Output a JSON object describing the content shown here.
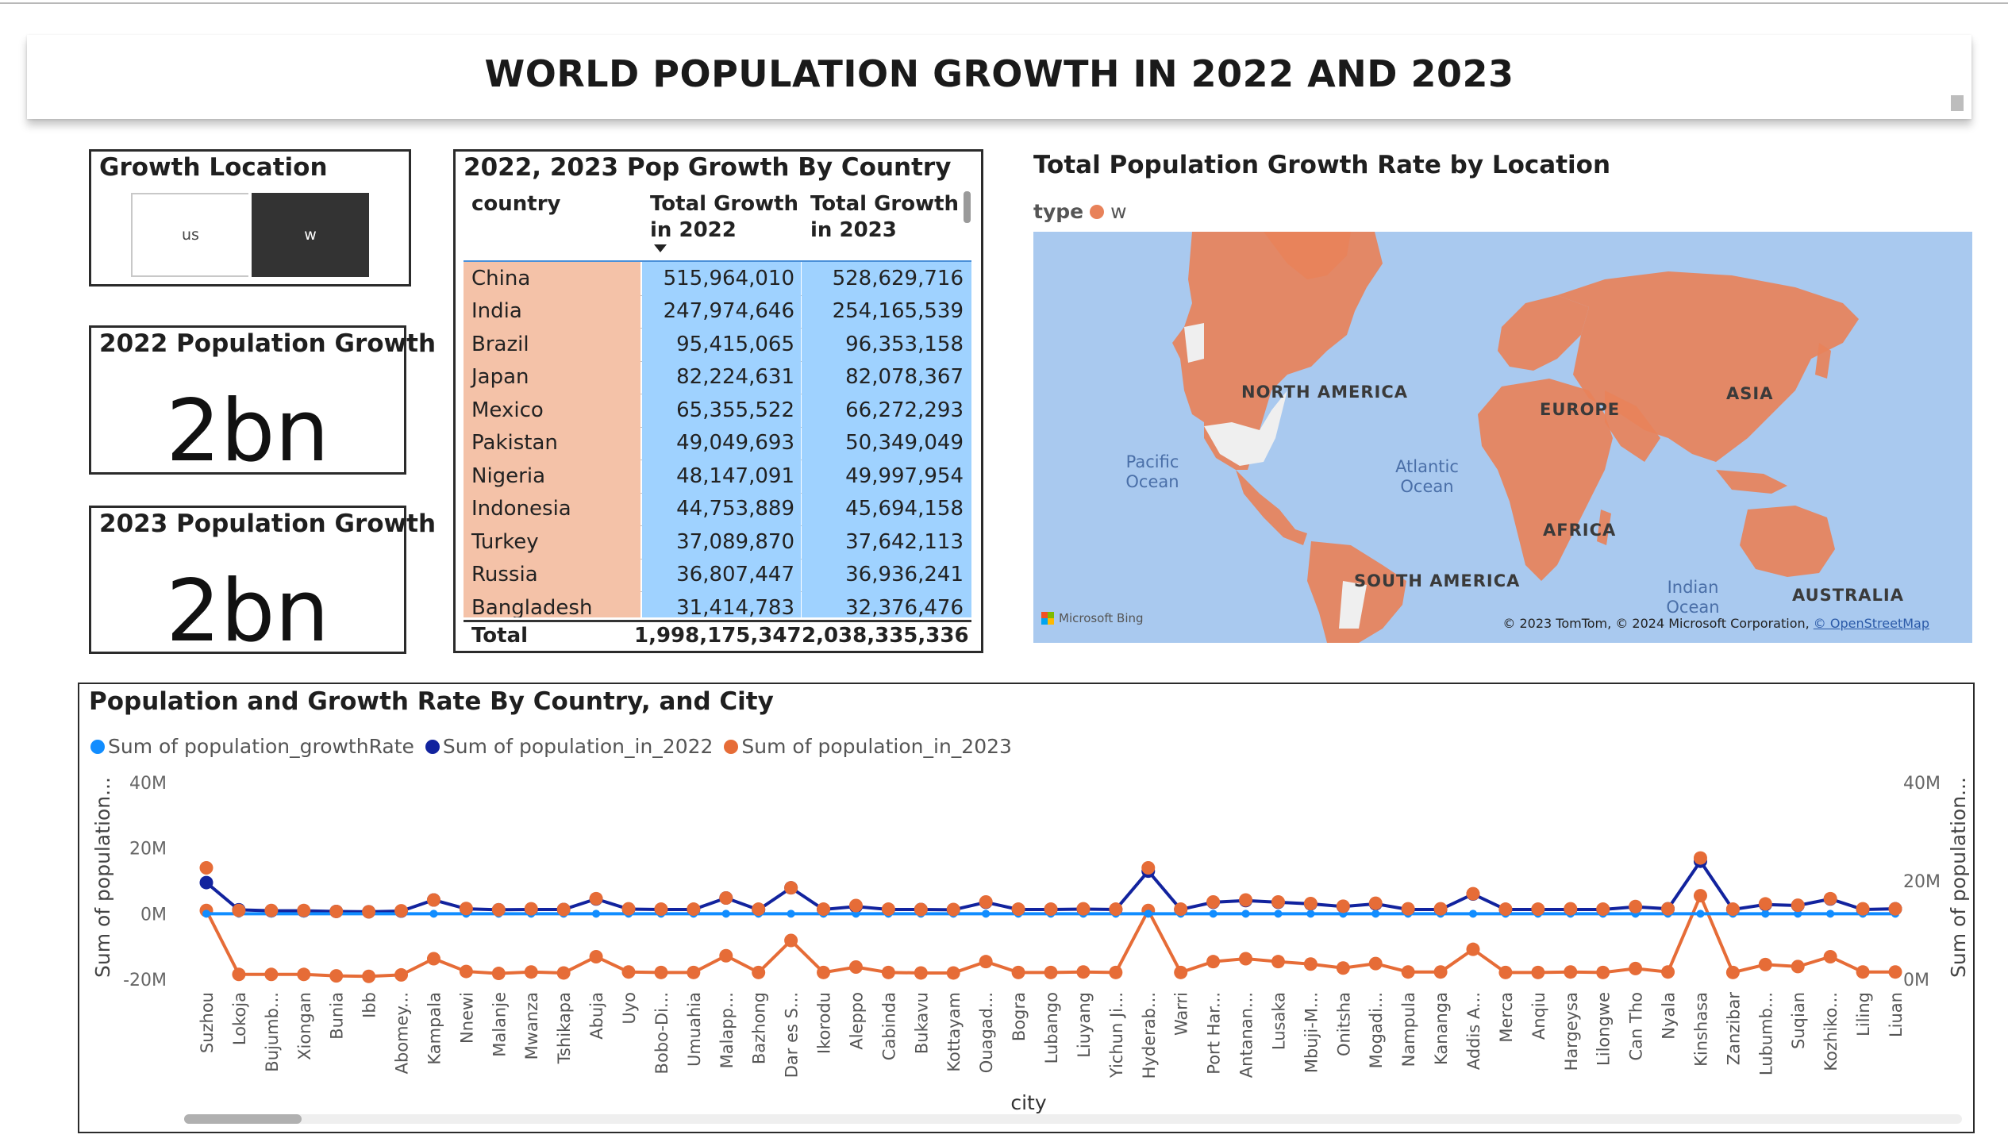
{
  "title": "WORLD POPULATION GROWTH IN 2022 AND 2023",
  "slicer": {
    "title": "Growth Location",
    "options": [
      {
        "label": "us",
        "selected": false
      },
      {
        "label": "w",
        "selected": true
      }
    ]
  },
  "kpi_2022": {
    "title": "2022 Population Growth",
    "value": "2bn"
  },
  "kpi_2023": {
    "title": "2023 Population Growth",
    "value": "2bn"
  },
  "table": {
    "title": "2022, 2023 Pop Growth By Country",
    "columns": [
      "country",
      "Total Growth in 2022",
      "Total Growth in 2023"
    ],
    "rows": [
      [
        "China",
        "515,964,010",
        "528,629,716"
      ],
      [
        "India",
        "247,974,646",
        "254,165,539"
      ],
      [
        "Brazil",
        "95,415,065",
        "96,353,158"
      ],
      [
        "Japan",
        "82,224,631",
        "82,078,367"
      ],
      [
        "Mexico",
        "65,355,522",
        "66,272,293"
      ],
      [
        "Pakistan",
        "49,049,693",
        "50,349,049"
      ],
      [
        "Nigeria",
        "48,147,091",
        "49,997,954"
      ],
      [
        "Indonesia",
        "44,753,889",
        "45,694,158"
      ],
      [
        "Turkey",
        "37,089,870",
        "37,642,113"
      ],
      [
        "Russia",
        "36,807,447",
        "36,936,241"
      ],
      [
        "Bangladesh",
        "31,414,783",
        "32,376,476"
      ]
    ],
    "total": {
      "label": "Total",
      "v2022": "1,998,175,347",
      "v2023": "2,038,335,336"
    }
  },
  "map": {
    "title": "Total Population Growth Rate by Location",
    "legend_title": "type",
    "legend_item": "w",
    "legend_color": "#e8825a",
    "continents": [
      "NORTH AMERICA",
      "EUROPE",
      "ASIA",
      "AFRICA",
      "SOUTH AMERICA",
      "AUSTRALIA"
    ],
    "oceans": [
      "Pacific Ocean",
      "Atlantic Ocean",
      "Indian Ocean"
    ],
    "provider": "Microsoft Bing",
    "copyright_text": "© 2023 TomTom, © 2024 Microsoft Corporation, ",
    "copyright_link": "© OpenStreetMap"
  },
  "chart": {
    "title": "Population and Growth Rate By Country, and City",
    "legend": [
      {
        "name": "Sum of population_growthRate",
        "color": "#118dff"
      },
      {
        "name": "Sum of population_in_2022",
        "color": "#12239e"
      },
      {
        "name": "Sum of population_in_2023",
        "color": "#e66c37"
      }
    ],
    "y_left_title": "Sum of population...",
    "y_right_title": "Sum of population...",
    "x_title": "city",
    "y_left_ticks": [
      "40M",
      "20M",
      "0M",
      "-20M"
    ],
    "y_right_ticks": [
      "40M",
      "20M",
      "0M"
    ]
  },
  "chart_data": {
    "type": "line",
    "title": "Population and Growth Rate By Country, and City",
    "xlabel": "city",
    "ylabel": "Sum of population...",
    "ylim_left": [
      -20000000,
      40000000
    ],
    "ylim_right": [
      0,
      40000000
    ],
    "grid": false,
    "legend_position": "top-left",
    "x": [
      "Suzhou",
      "Lokoja",
      "Bujumb...",
      "Xiongan",
      "Bunia",
      "Ibb",
      "Abomey...",
      "Kampala",
      "Nnewi",
      "Malanje",
      "Mwanza",
      "Tshikapa",
      "Abuja",
      "Uyo",
      "Bobo-Di...",
      "Umuahia",
      "Malapp...",
      "Bazhong",
      "Dar es S...",
      "Ikorodu",
      "Aleppo",
      "Cabinda",
      "Bukavu",
      "Kottayam",
      "Ouagad...",
      "Bogra",
      "Lubango",
      "Liuyang",
      "Yichun Ji...",
      "Hyderab...",
      "Warri",
      "Port Har...",
      "Antanan...",
      "Lusaka",
      "Mbuji-M...",
      "Onitsha",
      "Mogadi...",
      "Nampula",
      "Kananga",
      "Addis A...",
      "Merca",
      "Anqiu",
      "Hargeysa",
      "Lilongwe",
      "Can Tho",
      "Nyala",
      "Kinshasa",
      "Zanzibar",
      "Lubumb...",
      "Suqian",
      "Kozhiko...",
      "Liling",
      "Liuan"
    ],
    "series": [
      {
        "name": "Sum of population_growthRate",
        "axis": "left",
        "values": [
          0,
          0,
          0,
          0,
          0,
          0,
          0,
          0,
          0,
          0,
          0,
          0,
          0,
          0,
          0,
          0,
          0,
          0,
          0,
          0,
          0,
          0,
          0,
          0,
          0,
          0,
          0,
          0,
          0,
          0,
          0,
          0,
          0,
          0,
          0,
          0,
          0,
          0,
          0,
          0,
          0,
          0,
          0,
          0,
          0,
          0,
          0,
          0,
          0,
          0,
          0,
          0,
          0
        ]
      },
      {
        "name": "Sum of population_in_2022",
        "axis": "left",
        "values": [
          9500000,
          1200000,
          900000,
          900000,
          700000,
          600000,
          800000,
          4200000,
          1500000,
          1200000,
          1300000,
          1300000,
          4500000,
          1400000,
          1300000,
          1300000,
          4800000,
          1200000,
          7900000,
          1300000,
          2200000,
          1300000,
          1300000,
          1200000,
          3500000,
          1300000,
          1300000,
          1400000,
          1300000,
          13000000,
          1300000,
          3500000,
          4000000,
          3500000,
          3000000,
          2200000,
          3000000,
          1300000,
          1300000,
          6000000,
          1300000,
          1300000,
          1300000,
          1300000,
          2100000,
          1500000,
          16000000,
          1300000,
          2800000,
          2500000,
          4500000,
          1300000,
          1500000
        ]
      },
      {
        "name": "Sum of population_in_2023",
        "axis": "right",
        "values": [
          14000000,
          1000000,
          1000000,
          1000000,
          700000,
          600000,
          900000,
          4200000,
          1600000,
          1200000,
          1500000,
          1300000,
          4600000,
          1500000,
          1400000,
          1400000,
          4800000,
          1400000,
          7900000,
          1400000,
          2500000,
          1400000,
          1300000,
          1300000,
          3600000,
          1400000,
          1400000,
          1500000,
          1400000,
          14000000,
          1400000,
          3600000,
          4200000,
          3600000,
          3100000,
          2300000,
          3200000,
          1500000,
          1500000,
          6100000,
          1400000,
          1400000,
          1500000,
          1400000,
          2200000,
          1500000,
          17000000,
          1400000,
          3000000,
          2600000,
          4600000,
          1500000,
          1500000
        ]
      }
    ]
  }
}
